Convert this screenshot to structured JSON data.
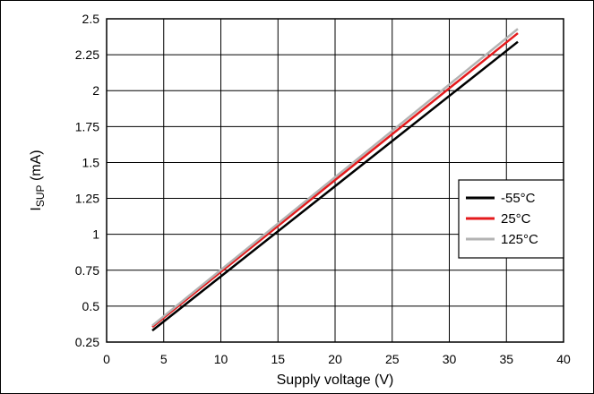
{
  "chart_data": {
    "type": "line",
    "title": "",
    "xlabel": "Supply voltage (V)",
    "ylabel_main": "I",
    "ylabel_sub": "SUP",
    "ylabel_unit": " (mA)",
    "xlim": [
      0,
      40
    ],
    "ylim": [
      0.25,
      2.5
    ],
    "xticks": [
      "0",
      "5",
      "10",
      "15",
      "20",
      "25",
      "30",
      "35",
      "40"
    ],
    "yticks": [
      "0.25",
      "0.5",
      "0.75",
      "1",
      "1.25",
      "1.5",
      "1.75",
      "2",
      "2.25",
      "2.5"
    ],
    "grid": true,
    "legend_position": "right",
    "series": [
      {
        "name": "-55°C",
        "color": "#000000",
        "x": [
          4,
          36
        ],
        "y": [
          0.33,
          2.34
        ]
      },
      {
        "name": "25°C",
        "color": "#e41a1c",
        "x": [
          4,
          36
        ],
        "y": [
          0.355,
          2.4
        ]
      },
      {
        "name": "125°C",
        "color": "#b3b3b3",
        "x": [
          4,
          36
        ],
        "y": [
          0.365,
          2.43
        ]
      }
    ]
  }
}
